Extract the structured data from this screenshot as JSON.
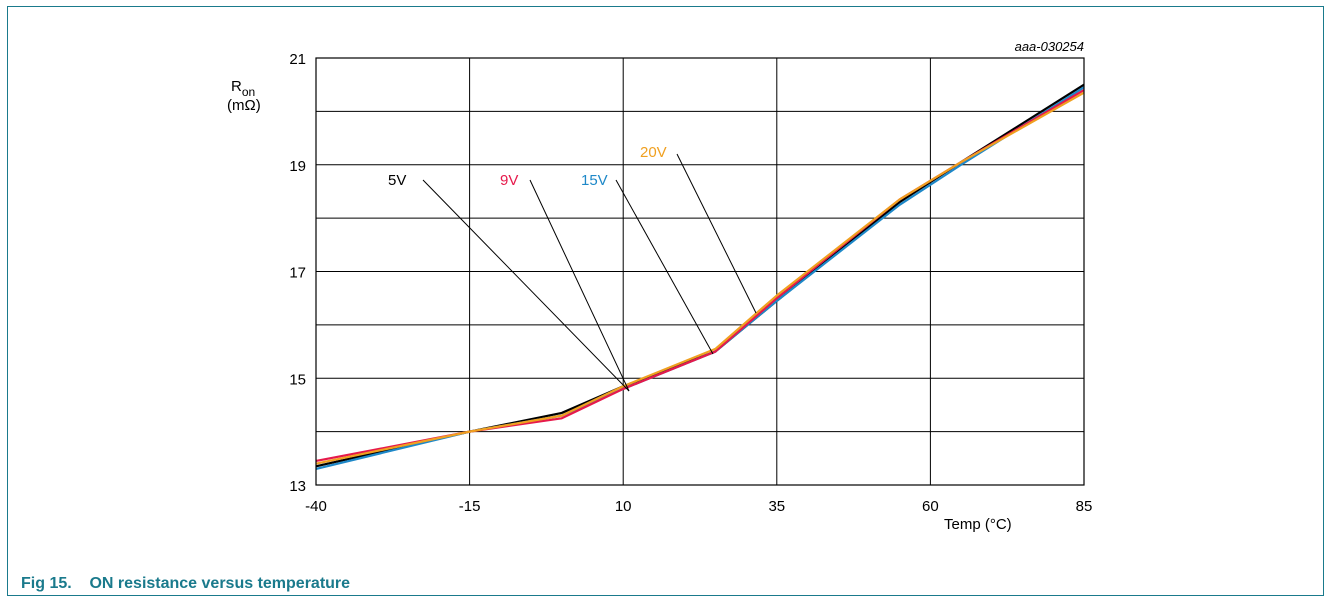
{
  "caption": {
    "label": "Fig 15.",
    "title": "ON resistance versus temperature"
  },
  "chart_data": {
    "type": "line",
    "code_label": "aaa-030254",
    "ylabel_main": "R",
    "ylabel_sub": "on",
    "ylabel_unit": "(mΩ)",
    "xlabel": "Temp (°C)",
    "xlim": [
      -40,
      85
    ],
    "ylim": [
      13,
      21
    ],
    "x_ticks": [
      -40,
      -15,
      10,
      35,
      60,
      85
    ],
    "y_ticks": [
      13,
      15,
      17,
      19,
      21
    ],
    "grid": true,
    "series": [
      {
        "name": "5V",
        "color": "#000000",
        "x": [
          -40,
          -15,
          0,
          10,
          25,
          35,
          55,
          65,
          85
        ],
        "y": [
          13.35,
          14.0,
          14.35,
          14.85,
          15.5,
          16.45,
          18.3,
          19.05,
          20.5
        ]
      },
      {
        "name": "9V",
        "color": "#e6194b",
        "x": [
          -40,
          -15,
          0,
          10,
          25,
          35,
          55,
          65,
          85
        ],
        "y": [
          13.45,
          14.0,
          14.25,
          14.8,
          15.5,
          16.5,
          18.35,
          19.05,
          20.4
        ]
      },
      {
        "name": "15V",
        "color": "#1e88c8",
        "x": [
          -40,
          -15,
          0,
          10,
          25,
          35,
          55,
          65,
          85
        ],
        "y": [
          13.3,
          14.0,
          14.3,
          14.8,
          15.5,
          16.45,
          18.25,
          19.0,
          20.45
        ]
      },
      {
        "name": "20V",
        "color": "#f0a020",
        "x": [
          -40,
          -15,
          0,
          10,
          25,
          35,
          55,
          65,
          85
        ],
        "y": [
          13.4,
          14.0,
          14.3,
          14.85,
          15.55,
          16.55,
          18.35,
          19.05,
          20.35
        ]
      }
    ]
  }
}
